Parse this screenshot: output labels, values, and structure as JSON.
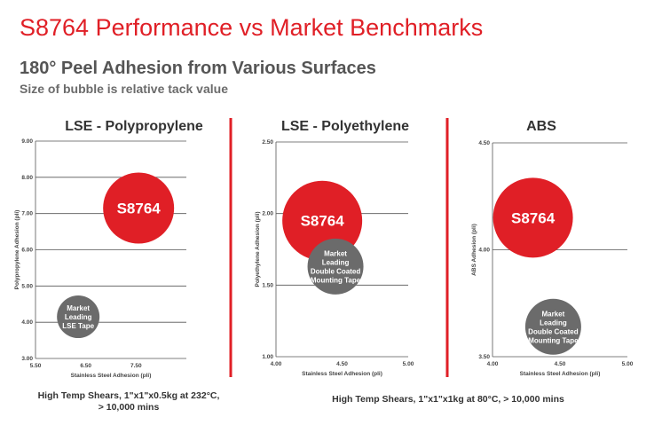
{
  "header": {
    "title": "S8764 Performance vs Market Benchmarks",
    "subtitle": "180° Peel Adhesion from Various Surfaces",
    "note": "Size of bubble is relative tack value"
  },
  "footnotes": {
    "chart1": "High Temp Shears, 1\"x1\"x0.5kg  at 232°C, > 10,000 mins",
    "chart2": "High Temp Shears, 1\"x1\"x1kg  at 80°C, > 10,000 mins"
  },
  "colors": {
    "accent_red": "#e01f26",
    "bubble_red": "#e01f26",
    "bubble_gray": "#6b6b6b",
    "grid": "#555555",
    "divider": "#e01f26"
  },
  "chart_data": [
    {
      "type": "scatter",
      "title": "LSE - Polypropylene",
      "xlabel": "Stainless Steel Adhesion (pli)",
      "ylabel": "Polypropylene Adhesion (pli)",
      "xlim": [
        5.5,
        8.5
      ],
      "ylim": [
        3.0,
        9.0
      ],
      "xticks": [
        "5.50",
        "6.50",
        "7.50"
      ],
      "xtick_values": [
        5.5,
        6.5,
        7.5
      ],
      "yticks": [
        "3.00",
        "4.00",
        "5.00",
        "6.00",
        "7.00",
        "8.00",
        "9.00"
      ],
      "ytick_values": [
        3,
        4,
        5,
        6,
        7,
        8,
        9
      ],
      "grid": "horizontal",
      "points": [
        {
          "label": "S8764",
          "x": 7.55,
          "y": 7.15,
          "size": 10,
          "color": "#e01f26"
        },
        {
          "label": "Market Leading LSE Tape",
          "x": 6.35,
          "y": 4.15,
          "size": 6,
          "color": "#6b6b6b"
        }
      ]
    },
    {
      "type": "scatter",
      "title": "LSE - Polyethylene",
      "xlabel": "Stainless Steel Adhesion (pli)",
      "ylabel": "Polyethylene Adhesion (pli)",
      "xlim": [
        4.0,
        5.0
      ],
      "ylim": [
        1.0,
        2.5
      ],
      "xticks": [
        "4.00",
        "4.50",
        "5.00"
      ],
      "xtick_values": [
        4.0,
        4.5,
        5.0
      ],
      "yticks": [
        "1.00",
        "1.50",
        "2.00",
        "2.50"
      ],
      "ytick_values": [
        1.0,
        1.5,
        2.0,
        2.5
      ],
      "grid": "horizontal",
      "points": [
        {
          "label": "S8764",
          "x": 4.35,
          "y": 1.95,
          "size": 10,
          "color": "#e01f26"
        },
        {
          "label": "Market Leading Double Coated Mounting Tape",
          "x": 4.45,
          "y": 1.63,
          "size": 7,
          "color": "#6b6b6b"
        }
      ]
    },
    {
      "type": "scatter",
      "title": "ABS",
      "xlabel": "Stainless Steel Adhesion (pli)",
      "ylabel": "ABS Adhesion (pli)",
      "xlim": [
        4.0,
        5.0
      ],
      "ylim": [
        3.5,
        4.5
      ],
      "xticks": [
        "4.00",
        "4.50",
        "5.00"
      ],
      "xtick_values": [
        4.0,
        4.5,
        5.0
      ],
      "yticks": [
        "3.50",
        "4.00",
        "4.50"
      ],
      "ytick_values": [
        3.5,
        4.0,
        4.5
      ],
      "grid": "horizontal",
      "points": [
        {
          "label": "S8764",
          "x": 4.3,
          "y": 4.15,
          "size": 10,
          "color": "#e01f26"
        },
        {
          "label": "Market Leading Double Coated Mounting Tape",
          "x": 4.45,
          "y": 3.64,
          "size": 7,
          "color": "#6b6b6b"
        }
      ]
    }
  ]
}
